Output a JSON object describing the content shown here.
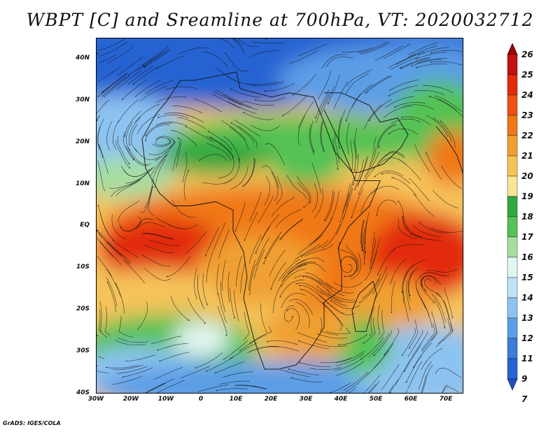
{
  "title": "WBPT [C] and Sreamline at 700hPa, VT: 2020032712",
  "footer": "GrADS: IGES/COLA",
  "map": {
    "lon_range": [
      -30,
      75
    ],
    "lat_range": [
      -40,
      45
    ],
    "lat_ticks": [
      {
        "value": 40,
        "label": "40N"
      },
      {
        "value": 30,
        "label": "30N"
      },
      {
        "value": 20,
        "label": "20N"
      },
      {
        "value": 10,
        "label": "10N"
      },
      {
        "value": 0,
        "label": "EQ"
      },
      {
        "value": -10,
        "label": "10S"
      },
      {
        "value": -20,
        "label": "20S"
      },
      {
        "value": -30,
        "label": "30S"
      },
      {
        "value": -40,
        "label": "40S"
      }
    ],
    "lon_ticks": [
      {
        "value": -30,
        "label": "30W"
      },
      {
        "value": -20,
        "label": "20W"
      },
      {
        "value": -10,
        "label": "10W"
      },
      {
        "value": 0,
        "label": "0"
      },
      {
        "value": 10,
        "label": "10E"
      },
      {
        "value": 20,
        "label": "20E"
      },
      {
        "value": 30,
        "label": "30E"
      },
      {
        "value": 40,
        "label": "40E"
      },
      {
        "value": 50,
        "label": "50E"
      },
      {
        "value": 60,
        "label": "60E"
      },
      {
        "value": 70,
        "label": "70E"
      }
    ]
  },
  "colorbar": {
    "levels": [
      "26",
      "25",
      "24",
      "23",
      "22",
      "21",
      "20",
      "19",
      "18",
      "17",
      "16",
      "15",
      "14",
      "13",
      "12",
      "11",
      "9",
      "7"
    ],
    "colors": [
      "#a00000",
      "#c41010",
      "#e22a0a",
      "#f05010",
      "#f07818",
      "#f0a030",
      "#f5c35a",
      "#fae496",
      "#30a840",
      "#55c255",
      "#a6dea0",
      "#e2f6f2",
      "#bde3f8",
      "#8dc3f0",
      "#5c9ee6",
      "#3c7cdb",
      "#2564d2",
      "#1d4fc8"
    ]
  }
}
